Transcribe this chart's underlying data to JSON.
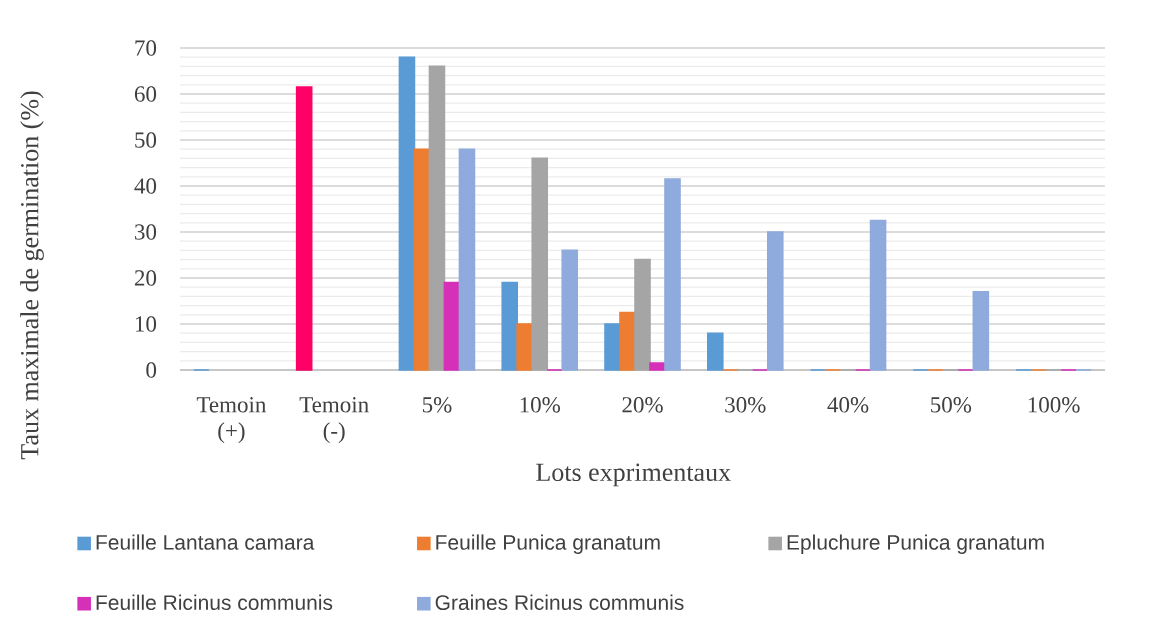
{
  "chart_data": {
    "type": "bar",
    "xlabel": "Lots exprimentaux",
    "ylabel": "Taux maximale de germination (%)",
    "categories": [
      "Temoin (+)",
      "Temoin (-)",
      "5%",
      "10%",
      "20%",
      "30%",
      "40%",
      "50%",
      "100%"
    ],
    "series": [
      {
        "name": "Feuille Lantana camara",
        "color": "#5b9bd5",
        "colors": [
          "#5b9bd5",
          "#ff0066",
          "#5b9bd5",
          "#5b9bd5",
          "#5b9bd5",
          "#5b9bd5",
          "#5b9bd5",
          "#5b9bd5",
          "#5b9bd5"
        ],
        "values": [
          0,
          61.5,
          68,
          19,
          10,
          8,
          0,
          0,
          0
        ]
      },
      {
        "name": "Feuille Punica granatum",
        "color": "#ed7d31",
        "values": [
          null,
          null,
          48,
          10,
          12.5,
          0,
          0,
          0,
          0
        ]
      },
      {
        "name": "Epluchure Punica granatum",
        "color": "#a5a5a5",
        "values": [
          null,
          null,
          66,
          46,
          24,
          0,
          0,
          0,
          0
        ]
      },
      {
        "name": "Feuille Ricinus communis",
        "color": "#d62fb8",
        "values": [
          null,
          null,
          19,
          0,
          1.5,
          0,
          0,
          0,
          0
        ]
      },
      {
        "name": "Graines Ricinus communis",
        "color": "#8faadc",
        "values": [
          null,
          null,
          48,
          26,
          41.5,
          30,
          32.5,
          17,
          0
        ]
      }
    ],
    "ylim": [
      0,
      70
    ],
    "yticks": [
      0,
      10,
      20,
      30,
      40,
      50,
      60,
      70
    ],
    "grid": "y",
    "legend": "bottom"
  }
}
